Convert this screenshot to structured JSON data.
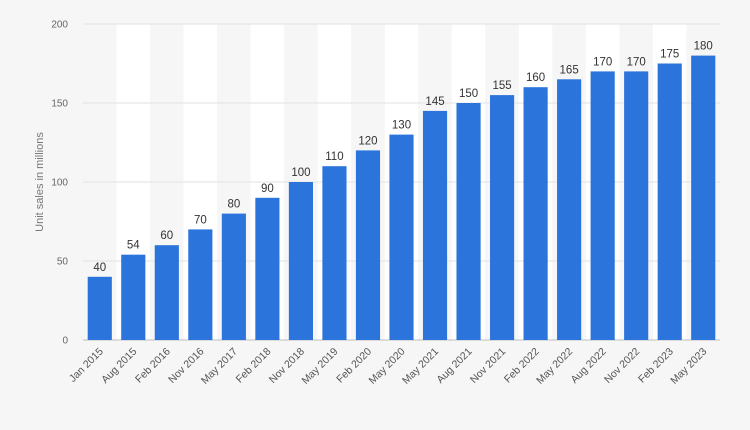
{
  "chart_data": {
    "type": "bar",
    "title": "",
    "xlabel": "",
    "ylabel": "Unit sales in millions",
    "ylim": [
      0,
      200
    ],
    "yticks": [
      0,
      50,
      100,
      150,
      200
    ],
    "grid": true,
    "bar_color": "#2a74db",
    "categories": [
      "Jan 2015",
      "Aug 2015",
      "Feb 2016",
      "Nov 2016",
      "May 2017",
      "Feb 2018",
      "Nov 2018",
      "May 2019",
      "Feb 2020",
      "May 2020",
      "May 2021",
      "Aug 2021",
      "Nov 2021",
      "Feb 2022",
      "May 2022",
      "Aug 2022",
      "Nov 2022",
      "Feb 2023",
      "May 2023"
    ],
    "values": [
      40,
      54,
      60,
      70,
      80,
      90,
      100,
      110,
      120,
      130,
      145,
      150,
      155,
      160,
      165,
      170,
      170,
      175,
      180
    ]
  }
}
